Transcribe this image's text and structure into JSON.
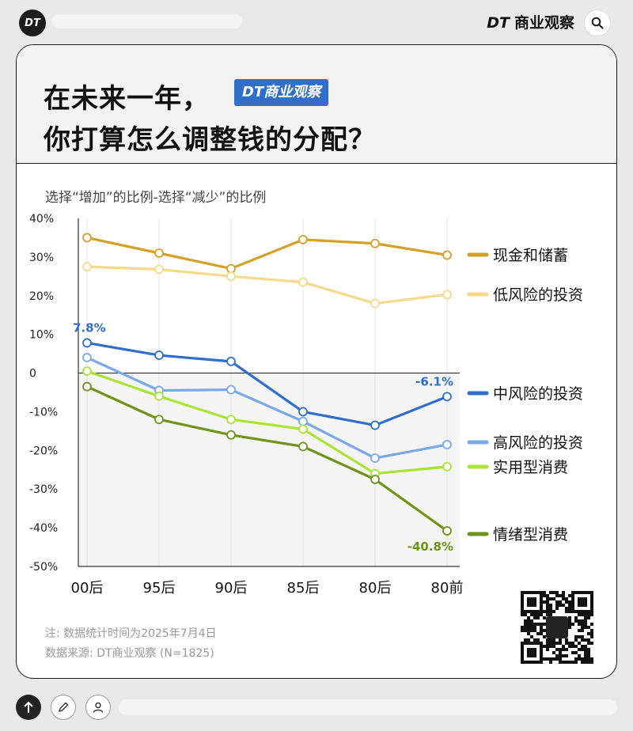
{
  "topbar": {
    "badge": "DT",
    "brand_dt": "DT",
    "brand_name": "商业观察"
  },
  "header": {
    "title_line1": "在未来一年，",
    "title_badge": "DT商业观察",
    "title_line2": "你打算怎么调整钱的分配？"
  },
  "colors": {
    "cash": "#d4a126",
    "low_risk": "#f7d98c",
    "mid_risk": "#2f6fcc",
    "high_risk": "#7aa9e8",
    "practical": "#a9e436",
    "emotional": "#6e9418"
  },
  "chart_data": {
    "type": "line",
    "subtitle": "选择“增加”的比例-选择“减少”的比例",
    "categories": [
      "00后",
      "95后",
      "90后",
      "85后",
      "80后",
      "80前"
    ],
    "ylim": [
      -50,
      40
    ],
    "yticks": [
      "40%",
      "30%",
      "20%",
      "10%",
      "0",
      "-10%",
      "-20%",
      "-30%",
      "-40%",
      "-50%"
    ],
    "series": [
      {
        "name": "现金和储蓄",
        "color_key": "cash",
        "values": [
          35,
          31,
          27,
          34.5,
          33.5,
          30.5
        ]
      },
      {
        "name": "低风险的投资",
        "color_key": "low_risk",
        "values": [
          27.5,
          26.8,
          25,
          23.5,
          18,
          20.3
        ]
      },
      {
        "name": "中风险的投资",
        "color_key": "mid_risk",
        "values": [
          7.8,
          4.6,
          3,
          -10,
          -13.5,
          -6.1
        ]
      },
      {
        "name": "高风险的投资",
        "color_key": "high_risk",
        "values": [
          4,
          -4.5,
          -4.3,
          -12.5,
          -22,
          -18.5
        ]
      },
      {
        "name": "实用型消费",
        "color_key": "practical",
        "values": [
          0.5,
          -6,
          -12,
          -14.5,
          -26,
          -24.2
        ]
      },
      {
        "name": "情绪型消费",
        "color_key": "emotional",
        "values": [
          -3.5,
          -12,
          -16,
          -19,
          -27.5,
          -40.8
        ]
      }
    ],
    "data_labels": [
      {
        "series": 2,
        "index": 0,
        "text": "7.8%"
      },
      {
        "series": 2,
        "index": 5,
        "text": "-6.1%"
      },
      {
        "series": 5,
        "index": 5,
        "text": "-40.8%"
      }
    ],
    "grid": "vertical"
  },
  "notes": {
    "note": "注: 数据统计时间为2025年7月4日",
    "source": "数据来源: DT商业观察 (N=1825)"
  },
  "footer": {
    "up_icon": "arrow-up-icon",
    "edit_icon": "pencil-icon",
    "user_icon": "user-icon"
  }
}
